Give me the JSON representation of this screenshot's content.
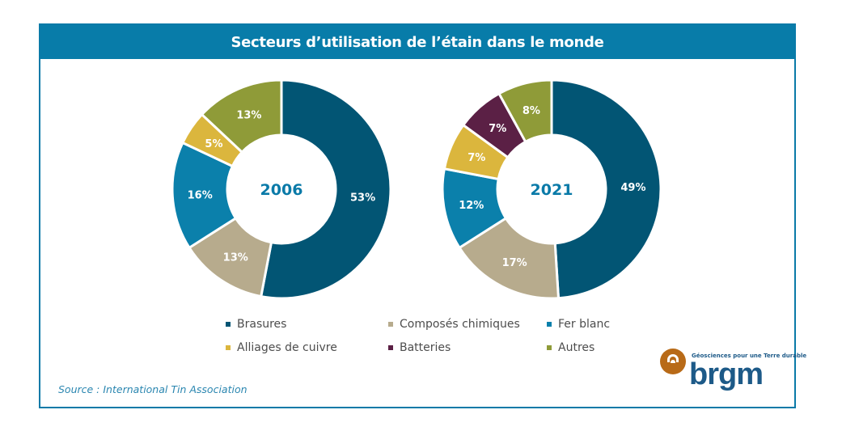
{
  "title": "Secteurs d’utilisation de l’étain dans le monde",
  "source": "Source : International  Tin Association",
  "logo": {
    "brand": "brgm",
    "tagline": "Géosciences pour une Terre durable"
  },
  "legend": [
    {
      "key": "brasures",
      "label": "Brasures",
      "color": "#025574"
    },
    {
      "key": "composes",
      "label": "Composés chimiques",
      "color": "#b7ab8d"
    },
    {
      "key": "ferblanc",
      "label": "Fer blanc",
      "color": "#0b80ab"
    },
    {
      "key": "alliages",
      "label": "Alliages de cuivre",
      "color": "#dbb63d"
    },
    {
      "key": "batteries",
      "label": "Batteries",
      "color": "#5b2045"
    },
    {
      "key": "autres",
      "label": "Autres",
      "color": "#8f9b38"
    }
  ],
  "chart_data": [
    {
      "type": "pie",
      "variant": "donut",
      "title": "2006",
      "categories": [
        "Brasures",
        "Composés chimiques",
        "Fer blanc",
        "Alliages de cuivre",
        "Batteries",
        "Autres"
      ],
      "values": [
        53,
        13,
        16,
        5,
        0,
        13
      ],
      "labels": [
        "53%",
        "13%",
        "16%",
        "5%",
        "",
        "13%"
      ],
      "unit": "%"
    },
    {
      "type": "pie",
      "variant": "donut",
      "title": "2021",
      "categories": [
        "Brasures",
        "Composés chimiques",
        "Fer blanc",
        "Alliages de cuivre",
        "Batteries",
        "Autres"
      ],
      "values": [
        49,
        17,
        12,
        7,
        7,
        8
      ],
      "labels": [
        "49%",
        "17%",
        "12%",
        "7%",
        "7%",
        "8%"
      ],
      "unit": "%"
    }
  ]
}
